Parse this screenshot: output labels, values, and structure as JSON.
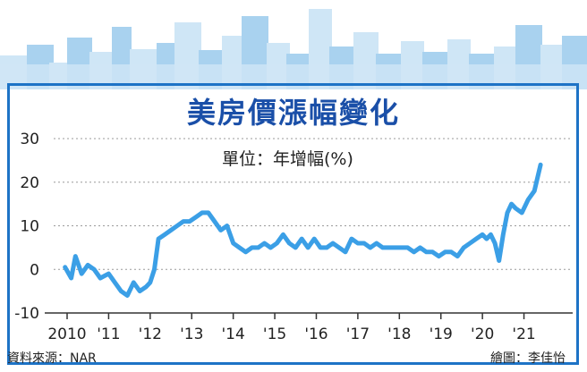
{
  "title": "美房價漲幅變化",
  "unit_label": "單位：年增幅(%)",
  "source": "資料來源：NAR",
  "credit": "繪圖：李佳怡",
  "colors": {
    "line": "#3b9fe6",
    "frame": "#1d73c6",
    "title": "#1a4fa8",
    "skyline_light": "#cfe6f6",
    "skyline_dark": "#a9d2ef"
  },
  "chart_data": {
    "type": "line",
    "title": "美房價漲幅變化",
    "ylabel": "單位：年增幅(%)",
    "xlabel": "",
    "ylim": [
      -10,
      30
    ],
    "yticks": [
      -10,
      0,
      10,
      20,
      30
    ],
    "xlim": [
      2010,
      2021.85
    ],
    "xticks": [
      {
        "x": 2010,
        "label": "2010"
      },
      {
        "x": 2011,
        "label": "'11"
      },
      {
        "x": 2012,
        "label": "'12"
      },
      {
        "x": 2013,
        "label": "'13"
      },
      {
        "x": 2014,
        "label": "'14"
      },
      {
        "x": 2015,
        "label": "'15"
      },
      {
        "x": 2016,
        "label": "'16"
      },
      {
        "x": 2017,
        "label": "'17"
      },
      {
        "x": 2018,
        "label": "'18"
      },
      {
        "x": 2019,
        "label": "'19"
      },
      {
        "x": 2020,
        "label": "'20"
      },
      {
        "x": 2021,
        "label": "'21"
      }
    ],
    "grid": true,
    "series": [
      {
        "x": [
          2009.95,
          2010.1,
          2010.2,
          2010.35,
          2010.5,
          2010.65,
          2010.8,
          2011.0,
          2011.15,
          2011.3,
          2011.45,
          2011.6,
          2011.75,
          2011.9,
          2012.0,
          2012.1,
          2012.2,
          2012.35,
          2012.5,
          2012.65,
          2012.8,
          2012.95,
          2013.1,
          2013.25,
          2013.4,
          2013.55,
          2013.7,
          2013.85,
          2014.0,
          2014.15,
          2014.3,
          2014.45,
          2014.6,
          2014.75,
          2014.9,
          2015.05,
          2015.2,
          2015.35,
          2015.5,
          2015.65,
          2015.8,
          2015.95,
          2016.1,
          2016.25,
          2016.4,
          2016.55,
          2016.7,
          2016.85,
          2017.0,
          2017.15,
          2017.3,
          2017.45,
          2017.6,
          2017.75,
          2017.9,
          2018.05,
          2018.2,
          2018.35,
          2018.5,
          2018.65,
          2018.8,
          2018.95,
          2019.1,
          2019.25,
          2019.4,
          2019.55,
          2019.7,
          2019.85,
          2020.0,
          2020.1,
          2020.2,
          2020.3,
          2020.4,
          2020.5,
          2020.6,
          2020.7,
          2020.8,
          2020.95,
          2021.1,
          2021.25,
          2021.4
        ],
        "values": [
          0.5,
          -2,
          3,
          -1,
          1,
          0,
          -2,
          -1,
          -3,
          -5,
          -6,
          -3,
          -5,
          -4,
          -3,
          0,
          7,
          8,
          9,
          10,
          11,
          11,
          12,
          13,
          13,
          11,
          9,
          10,
          6,
          5,
          4,
          5,
          5,
          6,
          5,
          6,
          8,
          6,
          5,
          7,
          5,
          7,
          5,
          5,
          6,
          5,
          4,
          7,
          6,
          6,
          5,
          6,
          5,
          5,
          5,
          5,
          5,
          4,
          5,
          4,
          4,
          3,
          4,
          4,
          3,
          5,
          6,
          7,
          8,
          7,
          8,
          6,
          2,
          8,
          13,
          15,
          14,
          13,
          16,
          18,
          24
        ]
      }
    ]
  }
}
